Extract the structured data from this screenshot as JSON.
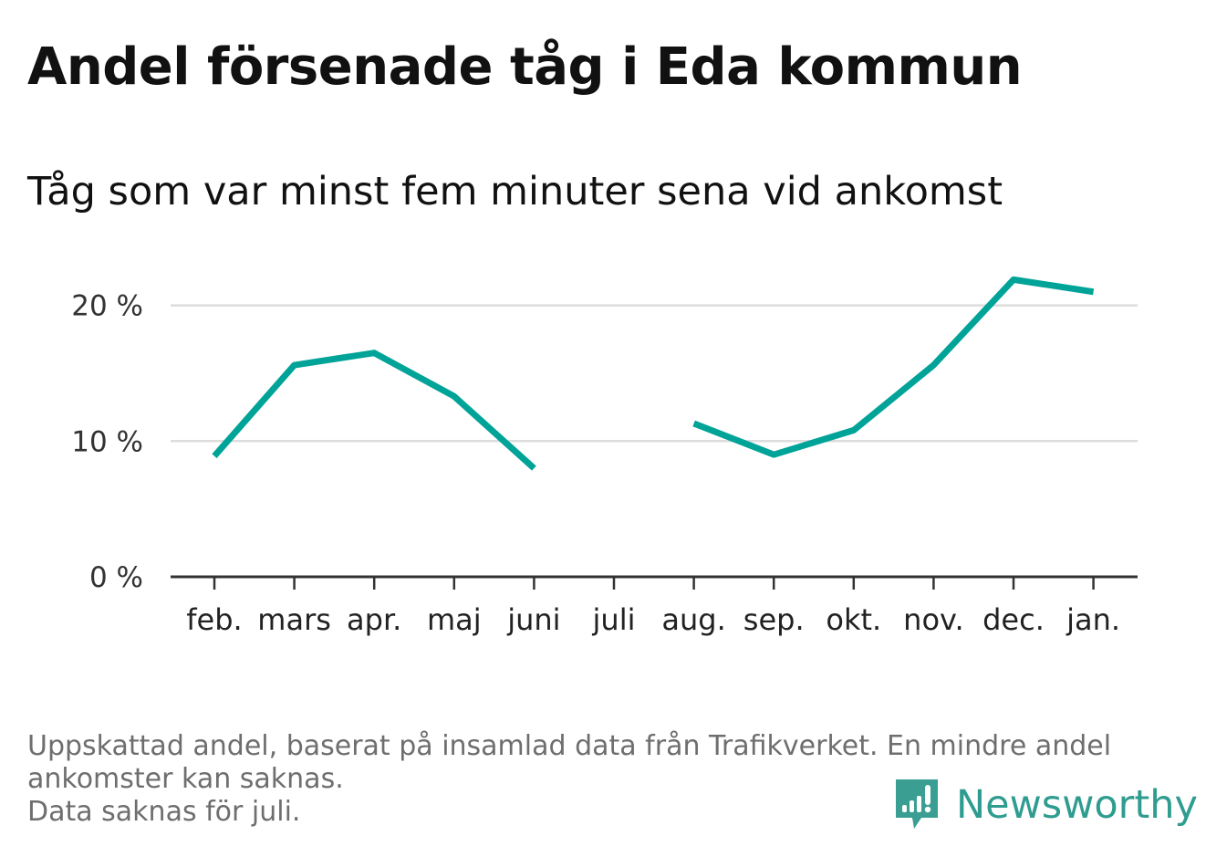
{
  "title": "Andel försenade tåg i Eda kommun",
  "subtitle": "Tåg som var minst fem minuter sena vid ankomst",
  "footer": {
    "line1": "Uppskattad andel, baserat på insamlad data från Trafikverket. En mindre andel",
    "line2": "ankomster kan saknas.",
    "line3": "Data saknas för juli."
  },
  "brand": {
    "name": "Newsworthy",
    "icon": "newsworthy-logo-icon",
    "color": "#3a9e93"
  },
  "chart_data": {
    "type": "line",
    "categories": [
      "feb.",
      "mars",
      "apr.",
      "maj",
      "juni",
      "juli",
      "aug.",
      "sep.",
      "okt.",
      "nov.",
      "dec.",
      "jan."
    ],
    "series": [
      {
        "values": [
          8.9,
          15.6,
          16.5,
          13.3,
          8.0,
          null,
          11.3,
          9.0,
          10.8,
          15.6,
          21.9,
          21.0
        ],
        "color": "#00a398"
      }
    ],
    "yticks": [
      0,
      10,
      20
    ],
    "ytick_labels": [
      "0 %",
      "10 %",
      "20 %"
    ],
    "ylim": [
      0,
      23
    ],
    "grid": true,
    "missing": "juli"
  }
}
